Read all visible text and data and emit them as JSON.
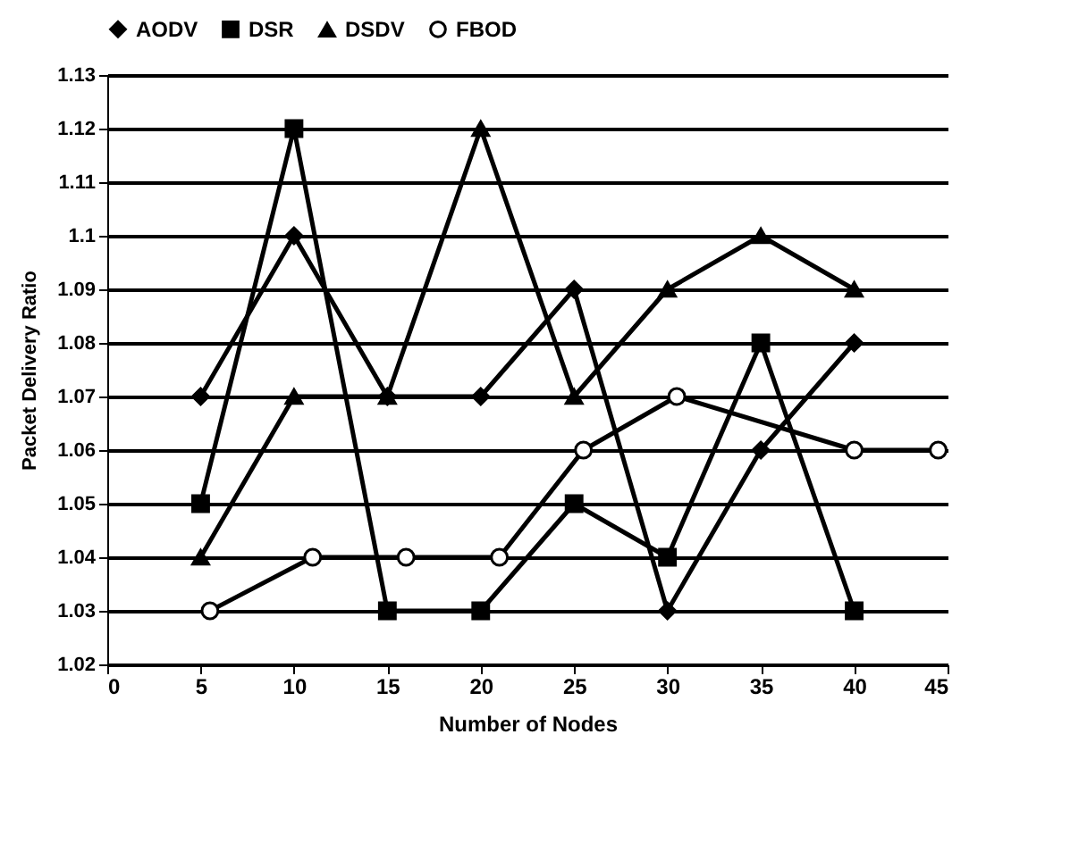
{
  "chart_data": {
    "type": "line",
    "xlabel": "Number of Nodes",
    "ylabel": "Packet Delivery Ratio",
    "xlim": [
      0,
      45
    ],
    "xticks": [
      0,
      5,
      10,
      15,
      20,
      25,
      30,
      35,
      40,
      45
    ],
    "ylim": [
      1.02,
      1.13
    ],
    "yticks": [
      1.02,
      1.03,
      1.04,
      1.05,
      1.06,
      1.07,
      1.08,
      1.09,
      1.1,
      1.11,
      1.12,
      1.13
    ],
    "grid": "y",
    "legend": "top",
    "series": [
      {
        "name": "AODV",
        "color": "#000000",
        "marker": "diamond",
        "x": [
          5,
          10,
          15,
          20,
          25,
          30,
          35,
          40
        ],
        "values": [
          1.07,
          1.1,
          1.07,
          1.07,
          1.09,
          1.03,
          1.06,
          1.08
        ]
      },
      {
        "name": "DSR",
        "color": "#000000",
        "marker": "square",
        "x": [
          5,
          10,
          15,
          20,
          25,
          30,
          35,
          40
        ],
        "values": [
          1.05,
          1.12,
          1.03,
          1.03,
          1.05,
          1.04,
          1.08,
          1.03
        ]
      },
      {
        "name": "DSDV",
        "color": "#000000",
        "marker": "triangle",
        "x": [
          5,
          10,
          15,
          20,
          25,
          30,
          35,
          40
        ],
        "values": [
          1.04,
          1.07,
          1.07,
          1.12,
          1.07,
          1.09,
          1.1,
          1.09
        ]
      },
      {
        "name": "FBOD",
        "color": "#000000",
        "marker": "circle",
        "x": [
          5.5,
          11,
          16,
          21,
          25.5,
          30.5,
          40,
          44.5
        ],
        "values": [
          1.03,
          1.04,
          1.04,
          1.04,
          1.06,
          1.07,
          1.06,
          1.06
        ]
      }
    ]
  }
}
